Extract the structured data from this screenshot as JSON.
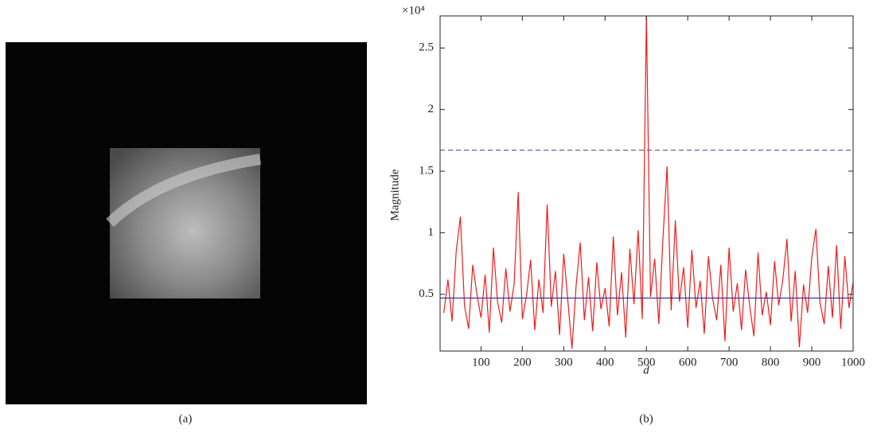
{
  "captions": [
    "(a)",
    "(b)"
  ],
  "chart_data": {
    "type": "line",
    "x_label": "d",
    "y_label": "Magnitude",
    "y_scale_label": "×10⁴",
    "xlim": [
      1,
      1000
    ],
    "ylim": [
      0.04,
      2.76
    ],
    "xticks": [
      100,
      200,
      300,
      400,
      500,
      600,
      700,
      800,
      900,
      1000
    ],
    "yticks": [
      0.5,
      1,
      1.5,
      2,
      2.5
    ],
    "x": [
      10,
      20,
      30,
      40,
      50,
      60,
      70,
      80,
      90,
      100,
      110,
      120,
      130,
      140,
      150,
      160,
      170,
      180,
      190,
      200,
      210,
      220,
      230,
      240,
      250,
      260,
      270,
      280,
      290,
      300,
      310,
      320,
      330,
      340,
      350,
      360,
      370,
      380,
      390,
      400,
      410,
      420,
      430,
      440,
      450,
      460,
      470,
      480,
      490,
      500,
      510,
      520,
      530,
      540,
      550,
      560,
      570,
      580,
      590,
      600,
      610,
      620,
      630,
      640,
      650,
      660,
      670,
      680,
      690,
      700,
      710,
      720,
      730,
      740,
      750,
      760,
      770,
      780,
      790,
      800,
      810,
      820,
      830,
      840,
      850,
      860,
      870,
      880,
      890,
      900,
      910,
      920,
      930,
      940,
      950,
      960,
      970,
      980,
      990,
      1000
    ],
    "series": [
      {
        "color": "#ee1c1c",
        "values": [
          0.35,
          0.62,
          0.28,
          0.85,
          1.13,
          0.41,
          0.22,
          0.74,
          0.5,
          0.31,
          0.66,
          0.19,
          0.88,
          0.44,
          0.27,
          0.71,
          0.36,
          0.58,
          1.33,
          0.3,
          0.49,
          0.78,
          0.21,
          0.62,
          0.35,
          1.23,
          0.4,
          0.69,
          0.17,
          0.83,
          0.45,
          0.06,
          0.57,
          0.92,
          0.29,
          0.64,
          0.2,
          0.76,
          0.38,
          0.55,
          0.24,
          0.97,
          0.33,
          0.68,
          0.15,
          0.87,
          0.42,
          1.02,
          0.3,
          2.76,
          0.48,
          0.79,
          0.26,
          0.95,
          1.54,
          0.37,
          1.1,
          0.44,
          0.72,
          0.23,
          0.86,
          0.39,
          0.61,
          0.18,
          0.81,
          0.47,
          0.29,
          0.74,
          0.12,
          0.88,
          0.36,
          0.59,
          0.21,
          0.7,
          0.4,
          0.16,
          0.84,
          0.33,
          0.52,
          0.25,
          0.77,
          0.41,
          0.62,
          0.95,
          0.28,
          0.69,
          0.07,
          0.58,
          0.35,
          0.8,
          1.03,
          0.43,
          0.26,
          0.73,
          0.31,
          0.9,
          0.22,
          0.81,
          0.39,
          0.6
        ]
      }
    ],
    "hlines": [
      {
        "value": 1.67,
        "color": "#3a5a9a",
        "style": "dashed"
      },
      {
        "value": 0.47,
        "color": "#2a2a8a",
        "style": "solid"
      }
    ]
  }
}
